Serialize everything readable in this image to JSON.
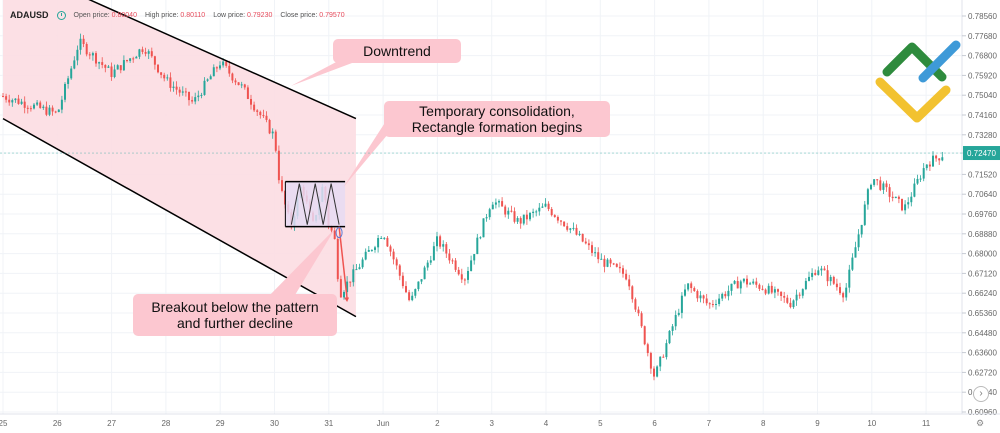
{
  "header": {
    "symbol": "ADAUSD",
    "open_label": "Open price:",
    "open_value": "0.80040",
    "high_label": "High price:",
    "high_value": "0.80110",
    "low_label": "Low price:",
    "low_value": "0.79230",
    "close_label": "Close price:",
    "close_value": "0.79570"
  },
  "chart_data": {
    "type": "candlestick",
    "y_ticks": [
      "0.78560",
      "0.77680",
      "0.76800",
      "0.75920",
      "0.75040",
      "0.74160",
      "0.73280",
      "0.72470",
      "0.71520",
      "0.70640",
      "0.69760",
      "0.68880",
      "0.68000",
      "0.67120",
      "0.66240",
      "0.65360",
      "0.64480",
      "0.63600",
      "0.62720",
      "0.61840",
      "0.60960"
    ],
    "ylim": [
      0.6096,
      0.7856
    ],
    "current_price": "0.72470",
    "x_ticks": [
      "25",
      "26",
      "27",
      "28",
      "29",
      "30",
      "31",
      "Jun",
      "2",
      "3",
      "4",
      "5",
      "6",
      "7",
      "8",
      "9",
      "10",
      "11"
    ],
    "price_path": [
      {
        "x": "25",
        "y": 0.75
      },
      {
        "x": "26",
        "y": 0.742
      },
      {
        "x": "26.4",
        "y": 0.774
      },
      {
        "x": "27",
        "y": 0.76
      },
      {
        "x": "27.6",
        "y": 0.772
      },
      {
        "x": "28",
        "y": 0.757
      },
      {
        "x": "28.5",
        "y": 0.747
      },
      {
        "x": "29",
        "y": 0.765
      },
      {
        "x": "29.4",
        "y": 0.754
      },
      {
        "x": "30",
        "y": 0.732
      },
      {
        "x": "30.1",
        "y": 0.71
      },
      {
        "x": "30.3",
        "y": 0.692
      },
      {
        "x": "30.5",
        "y": 0.711
      },
      {
        "x": "30.7",
        "y": 0.692
      },
      {
        "x": "30.9",
        "y": 0.711
      },
      {
        "x": "31",
        "y": 0.692
      },
      {
        "x": "31.1",
        "y": 0.688
      },
      {
        "x": "31.2",
        "y": 0.662
      },
      {
        "x": "Jun",
        "y": 0.69
      },
      {
        "x": "1.5",
        "y": 0.658
      },
      {
        "x": "2",
        "y": 0.686
      },
      {
        "x": "2.5",
        "y": 0.669
      },
      {
        "x": "3",
        "y": 0.704
      },
      {
        "x": "3.5",
        "y": 0.694
      },
      {
        "x": "4",
        "y": 0.701
      },
      {
        "x": "4.5",
        "y": 0.69
      },
      {
        "x": "5",
        "y": 0.677
      },
      {
        "x": "5.5",
        "y": 0.67
      },
      {
        "x": "6",
        "y": 0.625
      },
      {
        "x": "6.6",
        "y": 0.666
      },
      {
        "x": "7",
        "y": 0.657
      },
      {
        "x": "7.6",
        "y": 0.668
      },
      {
        "x": "8",
        "y": 0.665
      },
      {
        "x": "8.5",
        "y": 0.658
      },
      {
        "x": "9",
        "y": 0.674
      },
      {
        "x": "9.5",
        "y": 0.662
      },
      {
        "x": "10",
        "y": 0.714
      },
      {
        "x": "10.6",
        "y": 0.7
      },
      {
        "x": "11",
        "y": 0.72
      },
      {
        "x": "11.3",
        "y": 0.724
      }
    ],
    "channel": {
      "upper": [
        {
          "x": "25",
          "y": 0.81
        },
        {
          "x": "31.5",
          "y": 0.74
        }
      ],
      "lower": [
        {
          "x": "25",
          "y": 0.74
        },
        {
          "x": "31.5",
          "y": 0.652
        }
      ]
    },
    "rectangle": {
      "x_start": "30.2",
      "x_end": "31.3",
      "top": 0.712,
      "bottom": 0.692
    },
    "annotations": [
      {
        "text": "Downtrend"
      },
      {
        "text": "Temporary consolidation,\nRectangle formation begins"
      },
      {
        "text": "Breakout below the pattern\nand further decline"
      }
    ],
    "colors": {
      "up": "#26a69a",
      "down": "#ef5350",
      "channel_fill": "#fcdde2",
      "label_fill": "#fcc7d0",
      "rect_fill": "#e6dbf3",
      "price_tag": "#26a69a"
    }
  },
  "logo": {
    "colors": [
      "#2e8b3d",
      "#3e9ad8",
      "#f2c230"
    ]
  }
}
